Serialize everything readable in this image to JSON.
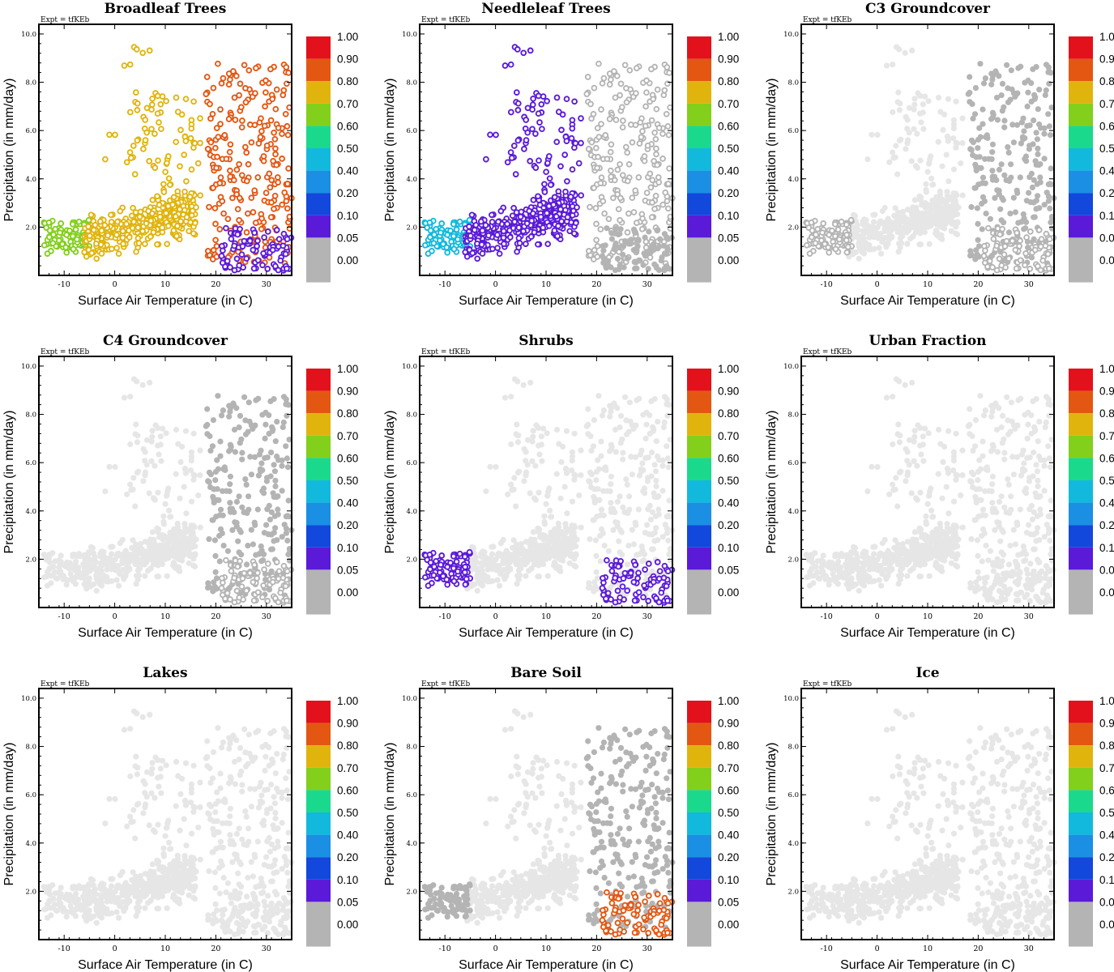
{
  "chart_data": {
    "type": "scatter",
    "expt_label": "Expt = tfKEb",
    "xlabel": "Surface Air Temperature (in C)",
    "ylabel": "Precipitation (in mm/day)",
    "xlim": [
      -15,
      35
    ],
    "ylim": [
      0,
      10.4
    ],
    "x_ticks": [
      -10,
      0,
      10,
      20,
      30
    ],
    "x_tick_labels": [
      "-10",
      "0",
      "10",
      "20",
      "30"
    ],
    "y_ticks": [
      2,
      4,
      6,
      8,
      10
    ],
    "y_tick_labels": [
      "2.0",
      "4.0",
      "6.0",
      "8.0",
      "10.0"
    ],
    "colorbar": {
      "labels": [
        "1.00",
        "0.90",
        "0.80",
        "0.70",
        "0.60",
        "0.50",
        "0.40",
        "0.20",
        "0.10",
        "0.05",
        "0.00"
      ],
      "colors": [
        "#e3111b",
        "#e35713",
        "#e0b40d",
        "#82cf1c",
        "#1bd98c",
        "#12b9dc",
        "#1a8fe3",
        "#1248db",
        "#5a1ad8",
        "#b4b4b4",
        "#b4b4b4"
      ]
    },
    "background_color": "#e6e6e6",
    "panels": [
      {
        "title": "Broadleaf Trees",
        "region_values": {
          "cold": 0.7,
          "mid": 0.8,
          "tropical": 0.9,
          "dry": 0.1
        }
      },
      {
        "title": "Needleleaf Trees",
        "region_values": {
          "cold": 0.5,
          "mid": 0.1,
          "tropical": 0.05,
          "dry": 0.0
        }
      },
      {
        "title": "C3 Groundcover",
        "region_values": {
          "cold": 0.05,
          "mid": null,
          "tropical": 0.0,
          "dry": 0.05
        }
      },
      {
        "title": "C4 Groundcover",
        "region_values": {
          "cold": null,
          "mid": null,
          "tropical": 0.0,
          "dry": 0.05
        }
      },
      {
        "title": "Shrubs",
        "region_values": {
          "cold": 0.1,
          "mid": null,
          "tropical": null,
          "dry": 0.1
        }
      },
      {
        "title": "Urban Fraction",
        "region_values": {
          "cold": null,
          "mid": null,
          "tropical": null,
          "dry": null
        }
      },
      {
        "title": "Lakes",
        "region_values": {
          "cold": null,
          "mid": null,
          "tropical": null,
          "dry": null
        }
      },
      {
        "title": "Bare Soil",
        "region_values": {
          "cold": 0.0,
          "mid": null,
          "tropical": 0.0,
          "dry": 0.9
        }
      },
      {
        "title": "Ice",
        "region_values": {
          "cold": null,
          "mid": null,
          "tropical": null,
          "dry": null
        }
      }
    ]
  }
}
